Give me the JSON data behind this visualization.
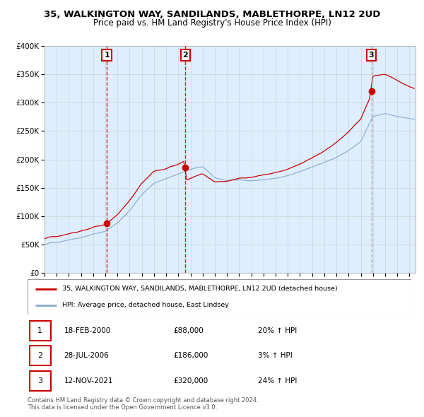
{
  "title_line1": "35, WALKINGTON WAY, SANDILANDS, MABLETHORPE, LN12 2UD",
  "title_line2": "Price paid vs. HM Land Registry's House Price Index (HPI)",
  "legend_label_red": "35, WALKINGTON WAY, SANDILANDS, MABLETHORPE, LN12 2UD (detached house)",
  "legend_label_blue": "HPI: Average price, detached house, East Lindsey",
  "transactions": [
    {
      "num": 1,
      "date": "18-FEB-2000",
      "price": "£88,000",
      "hpi": "20% ↑ HPI",
      "year": 2000.12
    },
    {
      "num": 2,
      "date": "28-JUL-2006",
      "price": "£186,000",
      "hpi": "3% ↑ HPI",
      "year": 2006.57
    },
    {
      "num": 3,
      "date": "12-NOV-2021",
      "price": "£320,000",
      "hpi": "24% ↑ HPI",
      "year": 2021.87
    }
  ],
  "transaction_prices": [
    88000,
    186000,
    320000
  ],
  "footer": "Contains HM Land Registry data © Crown copyright and database right 2024.\nThis data is licensed under the Open Government Licence v3.0.",
  "ylim": [
    0,
    400000
  ],
  "yticks": [
    0,
    50000,
    100000,
    150000,
    200000,
    250000,
    300000,
    350000,
    400000
  ],
  "color_red": "#cc0000",
  "color_blue": "#88aacc",
  "color_bg_shaded": "#ddeeff",
  "color_bg_white": "#ffffff",
  "color_grid": "#cccccc",
  "color_vline_red": "#cc0000",
  "color_vline_gray": "#999999",
  "xmin": 1995,
  "xmax": 2025.5
}
